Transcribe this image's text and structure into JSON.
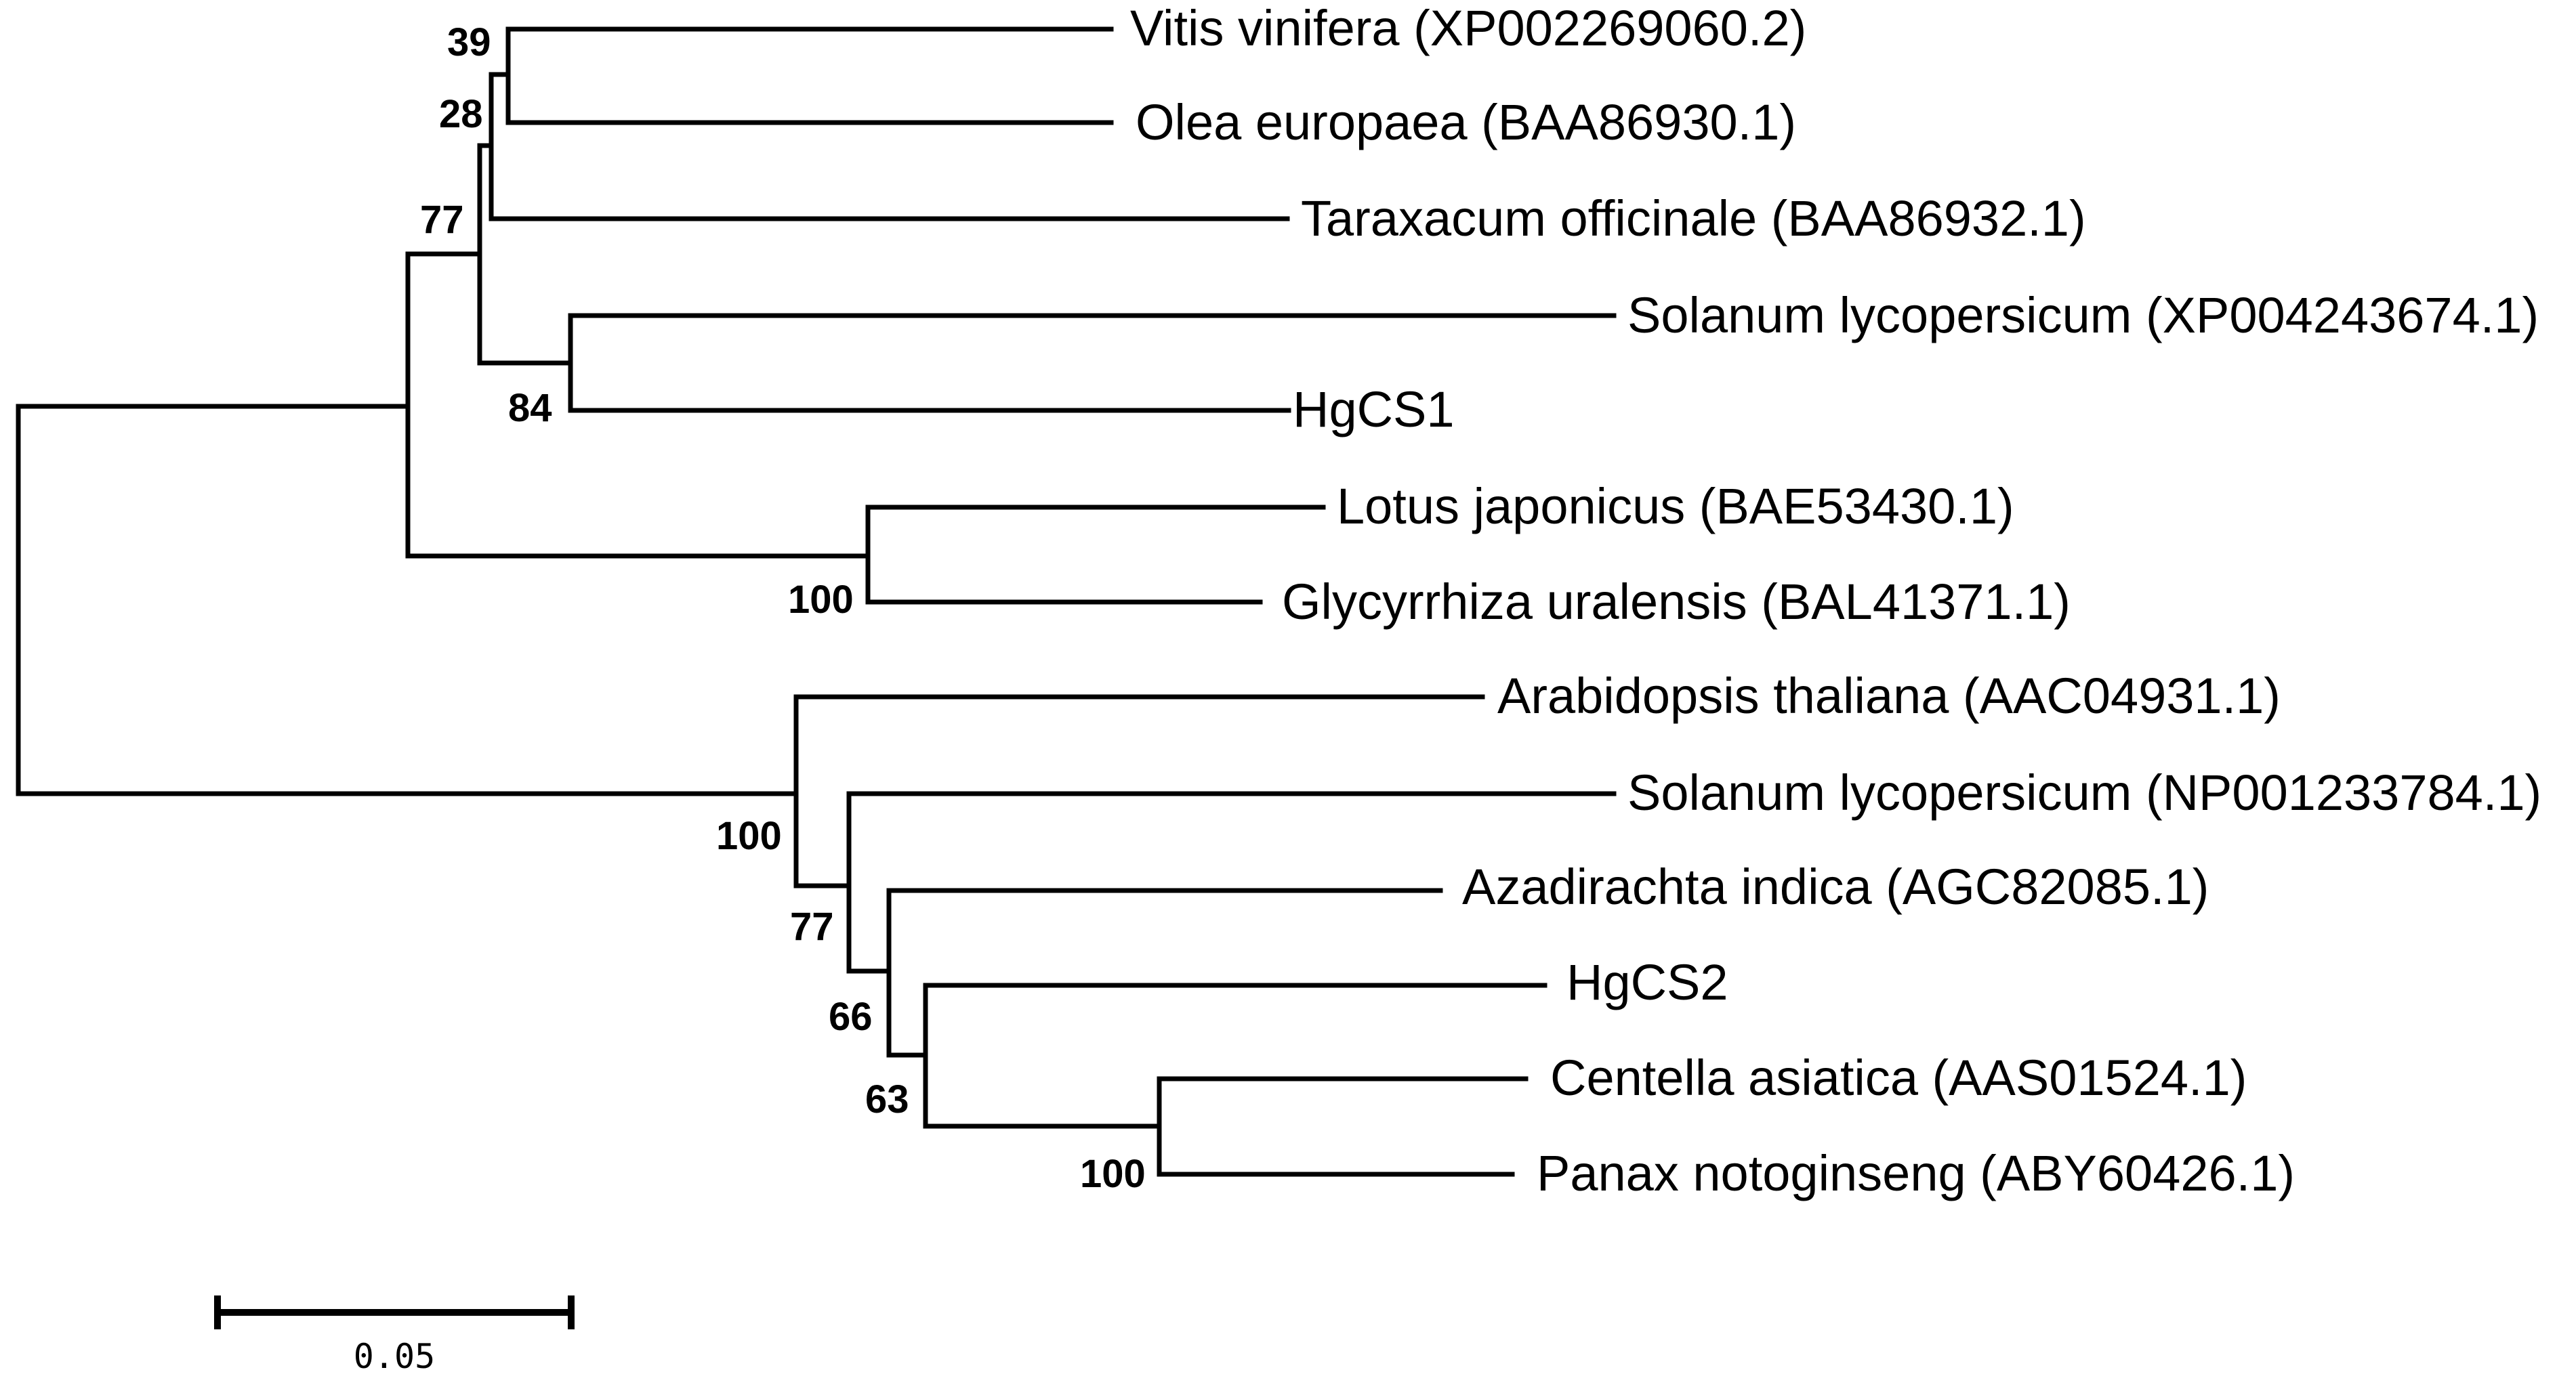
{
  "tree": {
    "leaves": [
      {
        "id": "vitis",
        "label": "Vitis vinifera (XP002269060.2)"
      },
      {
        "id": "olea",
        "label": "Olea europaea (BAA86930.1)"
      },
      {
        "id": "taraxacum",
        "label": "Taraxacum officinale (BAA86932.1)"
      },
      {
        "id": "solanum_a",
        "label": "Solanum lycopersicum (XP004243674.1)"
      },
      {
        "id": "hgcs1",
        "label": "HgCS1"
      },
      {
        "id": "lotus",
        "label": "Lotus japonicus (BAE53430.1)"
      },
      {
        "id": "glycyrrhiza",
        "label": "Glycyrrhiza uralensis (BAL41371.1)"
      },
      {
        "id": "arabidopsis",
        "label": "Arabidopsis thaliana (AAC04931.1)"
      },
      {
        "id": "solanum_b",
        "label": "Solanum lycopersicum (NP001233784.1)"
      },
      {
        "id": "azadirachta",
        "label": "Azadirachta indica (AGC82085.1)"
      },
      {
        "id": "hgcs2",
        "label": "HgCS2"
      },
      {
        "id": "centella",
        "label": "Centella asiatica (AAS01524.1)"
      },
      {
        "id": "panax",
        "label": "Panax notoginseng (ABY60426.1)"
      }
    ],
    "bootstrap": [
      {
        "node": "vitis-olea",
        "value": "39"
      },
      {
        "node": "vitis-olea-taraxacum",
        "value": "28"
      },
      {
        "node": "asterid-clade",
        "value": "77"
      },
      {
        "node": "solanum-hgcs1",
        "value": "84"
      },
      {
        "node": "lotus-glycyrrhiza",
        "value": "100"
      },
      {
        "node": "lower-clade",
        "value": "100"
      },
      {
        "node": "solanum-b-group",
        "value": "77"
      },
      {
        "node": "azadirachta-group",
        "value": "66"
      },
      {
        "node": "hgcs2-group",
        "value": "63"
      },
      {
        "node": "centella-panax",
        "value": "100"
      }
    ],
    "scale_bar": {
      "label": "0.05"
    }
  }
}
